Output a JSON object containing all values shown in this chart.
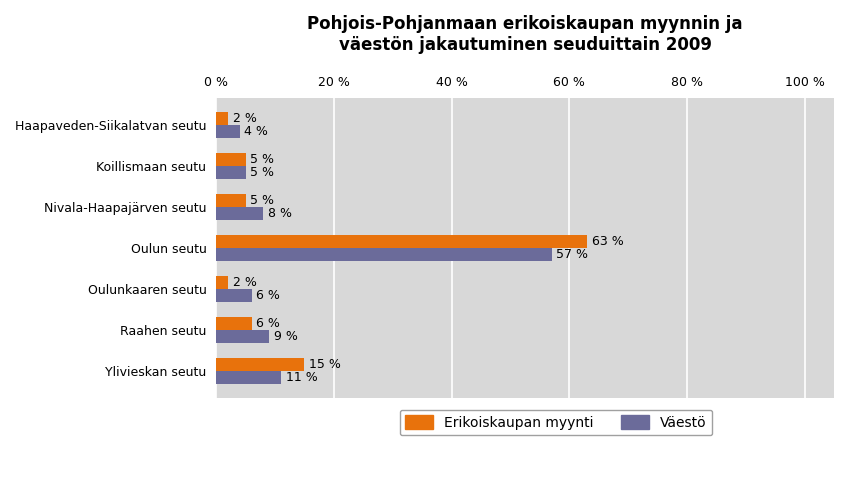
{
  "title": "Pohjois-Pohjanmaan erikoiskaupan myynnin ja\nväestön jakautuminen seuduittain 2009",
  "categories": [
    "Haapaveden-Siikalatvan seutu",
    "Koillismaan seutu",
    "Nivala-Haapajärven seutu",
    "Oulun seutu",
    "Oulunkaaren seutu",
    "Raahen seutu",
    "Ylivieskan seutu"
  ],
  "erikoiskaupan_myynti": [
    2,
    5,
    5,
    63,
    2,
    6,
    15
  ],
  "vaesto": [
    4,
    5,
    8,
    57,
    6,
    9,
    11
  ],
  "bar_color_myynti": "#E8720C",
  "bar_color_vaesto": "#6B6B9A",
  "background_color": "#D8D8D8",
  "xlim": [
    0,
    105
  ],
  "xticks": [
    0,
    20,
    40,
    60,
    80,
    100
  ],
  "xtick_labels": [
    "0 %",
    "20 %",
    "40 %",
    "60 %",
    "80 %",
    "100 %"
  ],
  "legend_myynti": "Erikoiskaupan myynti",
  "legend_vaesto": "Väestö",
  "title_fontsize": 12,
  "tick_fontsize": 9,
  "label_fontsize": 9,
  "bar_height": 0.32,
  "figure_width": 8.49,
  "figure_height": 4.86,
  "dpi": 100
}
